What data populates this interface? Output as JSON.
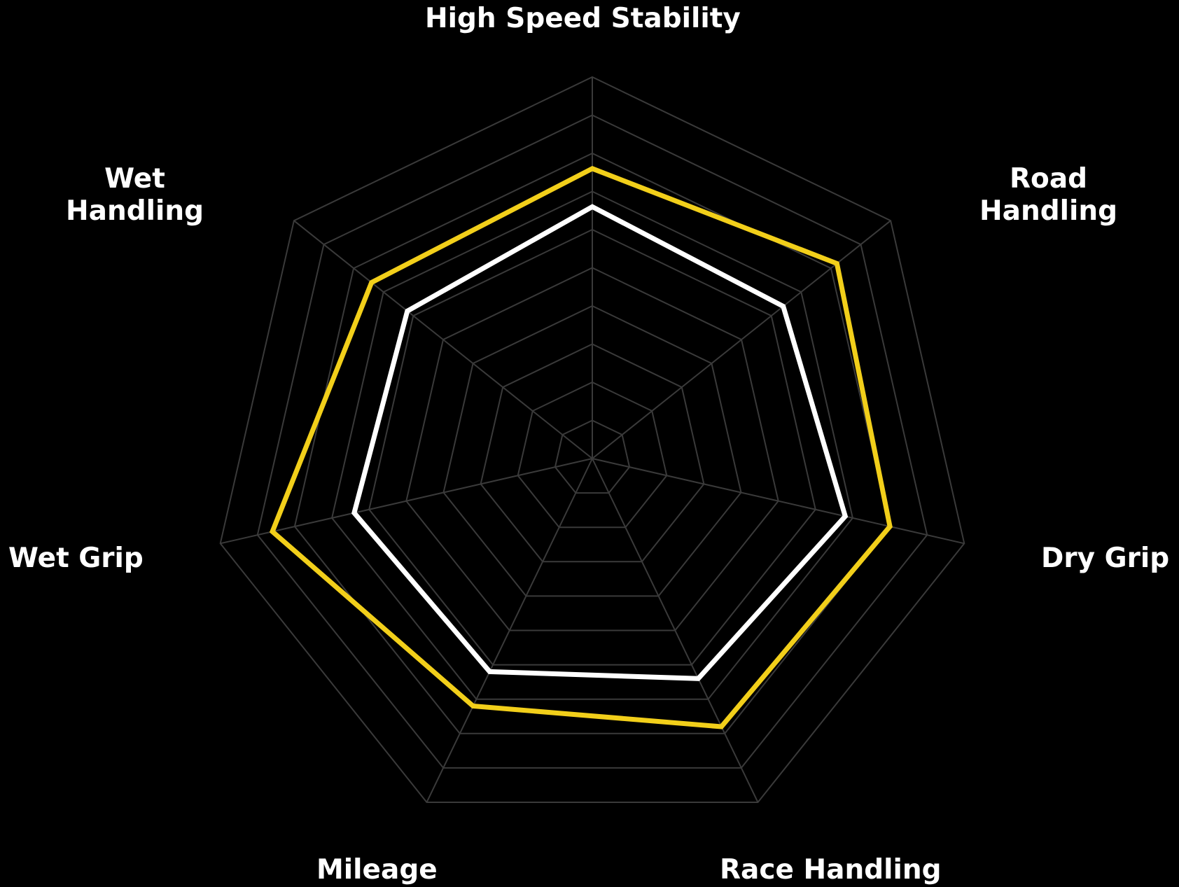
{
  "chart_data": {
    "type": "radar",
    "axes": [
      [
        "High Speed Stability"
      ],
      [
        "Road",
        "Handling"
      ],
      [
        "Dry Grip"
      ],
      [
        "Race Handling"
      ],
      [
        "Mileage"
      ],
      [
        "Wet Grip"
      ],
      [
        "Wet",
        "Handling"
      ]
    ],
    "rlim": [
      0,
      10
    ],
    "grid": true,
    "grid_levels": [
      1,
      2,
      3,
      4,
      5,
      6,
      7,
      8,
      9,
      10
    ],
    "series": [
      {
        "values": [
          7.6,
          8.2,
          8.0,
          7.8,
          7.2,
          8.6,
          7.4
        ],
        "color": "#f2cf1a"
      },
      {
        "values": [
          6.6,
          6.4,
          6.8,
          6.4,
          6.2,
          6.4,
          6.2
        ],
        "color": "#ffffff"
      }
    ],
    "colors": {
      "background": "#000000",
      "grid": "#3a3a3a",
      "label": "#ffffff"
    }
  }
}
